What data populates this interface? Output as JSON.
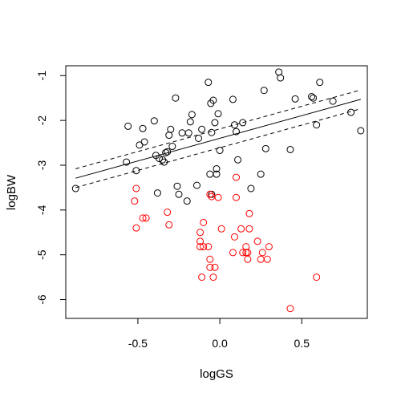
{
  "chart_data": {
    "type": "scatter",
    "xlabel": "logGS",
    "ylabel": "logBW",
    "xlim": [
      -0.94,
      0.9
    ],
    "ylim": [
      -6.42,
      -0.78
    ],
    "xticks": [
      -0.5,
      0.0,
      0.5
    ],
    "xtick_labels": [
      "-0.5",
      "0.0",
      "0.5"
    ],
    "yticks": [
      -1,
      -2,
      -3,
      -4,
      -5,
      -6
    ],
    "ytick_labels": [
      "-1",
      "-2",
      "-3",
      "-4",
      "-5",
      "-6"
    ],
    "grid": false,
    "series": [
      {
        "color": "#000000",
        "marker": "open-circle",
        "points": [
          [
            -0.88,
            -3.52
          ],
          [
            -0.56,
            -2.13
          ],
          [
            -0.57,
            -2.93
          ],
          [
            -0.51,
            -3.12
          ],
          [
            -0.49,
            -2.55
          ],
          [
            -0.47,
            -2.18
          ],
          [
            -0.46,
            -2.48
          ],
          [
            -0.4,
            -2.01
          ],
          [
            -0.39,
            -2.78
          ],
          [
            -0.38,
            -3.62
          ],
          [
            -0.37,
            -2.85
          ],
          [
            -0.35,
            -2.88
          ],
          [
            -0.34,
            -2.93
          ],
          [
            -0.33,
            -2.72
          ],
          [
            -0.32,
            -2.7
          ],
          [
            -0.31,
            -2.33
          ],
          [
            -0.3,
            -2.2
          ],
          [
            -0.29,
            -2.58
          ],
          [
            -0.27,
            -1.5
          ],
          [
            -0.26,
            -3.47
          ],
          [
            -0.25,
            -3.65
          ],
          [
            -0.23,
            -2.28
          ],
          [
            -0.2,
            -3.8
          ],
          [
            -0.19,
            -2.28
          ],
          [
            -0.18,
            -2.03
          ],
          [
            -0.17,
            -1.87
          ],
          [
            -0.14,
            -3.45
          ],
          [
            -0.13,
            -2.4
          ],
          [
            -0.11,
            -2.2
          ],
          [
            -0.07,
            -1.15
          ],
          [
            -0.06,
            -3.2
          ],
          [
            -0.055,
            -1.62
          ],
          [
            -0.05,
            -2.27
          ],
          [
            -0.05,
            -3.65
          ],
          [
            -0.04,
            -1.55
          ],
          [
            -0.03,
            -2.05
          ],
          [
            -0.02,
            -3.08
          ],
          [
            -0.02,
            -3.2
          ],
          [
            -0.01,
            -1.85
          ],
          [
            0.0,
            -2.67
          ],
          [
            0.08,
            -1.53
          ],
          [
            0.09,
            -2.1
          ],
          [
            0.1,
            -2.25
          ],
          [
            0.11,
            -2.88
          ],
          [
            0.14,
            -2.05
          ],
          [
            0.19,
            -3.52
          ],
          [
            0.25,
            -3.2
          ],
          [
            0.27,
            -1.33
          ],
          [
            0.28,
            -2.63
          ],
          [
            0.36,
            -0.92
          ],
          [
            0.37,
            -1.05
          ],
          [
            0.43,
            -2.65
          ],
          [
            0.46,
            -1.52
          ],
          [
            0.56,
            -1.47
          ],
          [
            0.57,
            -1.5
          ],
          [
            0.59,
            -2.1
          ],
          [
            0.61,
            -1.15
          ],
          [
            0.69,
            -1.57
          ],
          [
            0.8,
            -1.82
          ],
          [
            0.86,
            -2.23
          ]
        ]
      },
      {
        "color": "#ff0000",
        "marker": "open-circle",
        "points": [
          [
            -0.52,
            -3.8
          ],
          [
            -0.51,
            -3.52
          ],
          [
            -0.51,
            -4.4
          ],
          [
            -0.47,
            -4.18
          ],
          [
            -0.45,
            -4.18
          ],
          [
            -0.32,
            -4.05
          ],
          [
            -0.31,
            -4.33
          ],
          [
            -0.12,
            -4.7
          ],
          [
            -0.12,
            -4.82
          ],
          [
            -0.12,
            -4.5
          ],
          [
            -0.11,
            -5.5
          ],
          [
            -0.1,
            -4.82
          ],
          [
            -0.1,
            -4.28
          ],
          [
            -0.07,
            -4.82
          ],
          [
            -0.06,
            -5.1
          ],
          [
            -0.06,
            -5.28
          ],
          [
            -0.06,
            -3.65
          ],
          [
            -0.05,
            -3.7
          ],
          [
            -0.04,
            -5.5
          ],
          [
            -0.03,
            -5.28
          ],
          [
            -0.01,
            -3.72
          ],
          [
            0.01,
            -4.42
          ],
          [
            0.08,
            -4.95
          ],
          [
            0.09,
            -4.6
          ],
          [
            0.1,
            -3.27
          ],
          [
            0.1,
            -3.72
          ],
          [
            0.13,
            -4.42
          ],
          [
            0.14,
            -4.95
          ],
          [
            0.16,
            -4.95
          ],
          [
            0.16,
            -4.82
          ],
          [
            0.17,
            -4.95
          ],
          [
            0.17,
            -5.1
          ],
          [
            0.18,
            -4.08
          ],
          [
            0.18,
            -4.42
          ],
          [
            0.23,
            -4.7
          ],
          [
            0.25,
            -5.1
          ],
          [
            0.26,
            -4.95
          ],
          [
            0.29,
            -5.1
          ],
          [
            0.3,
            -4.82
          ],
          [
            0.43,
            -6.2
          ],
          [
            0.59,
            -5.5
          ]
        ]
      }
    ],
    "lines": [
      {
        "style": "solid",
        "x": [
          -0.88,
          0.86
        ],
        "y": [
          -3.29,
          -1.53
        ]
      },
      {
        "style": "dashed",
        "x": [
          -0.88,
          0.86
        ],
        "y": [
          -3.08,
          -1.32
        ]
      },
      {
        "style": "dashed",
        "x": [
          -0.88,
          0.86
        ],
        "y": [
          -3.5,
          -1.74
        ]
      }
    ]
  }
}
